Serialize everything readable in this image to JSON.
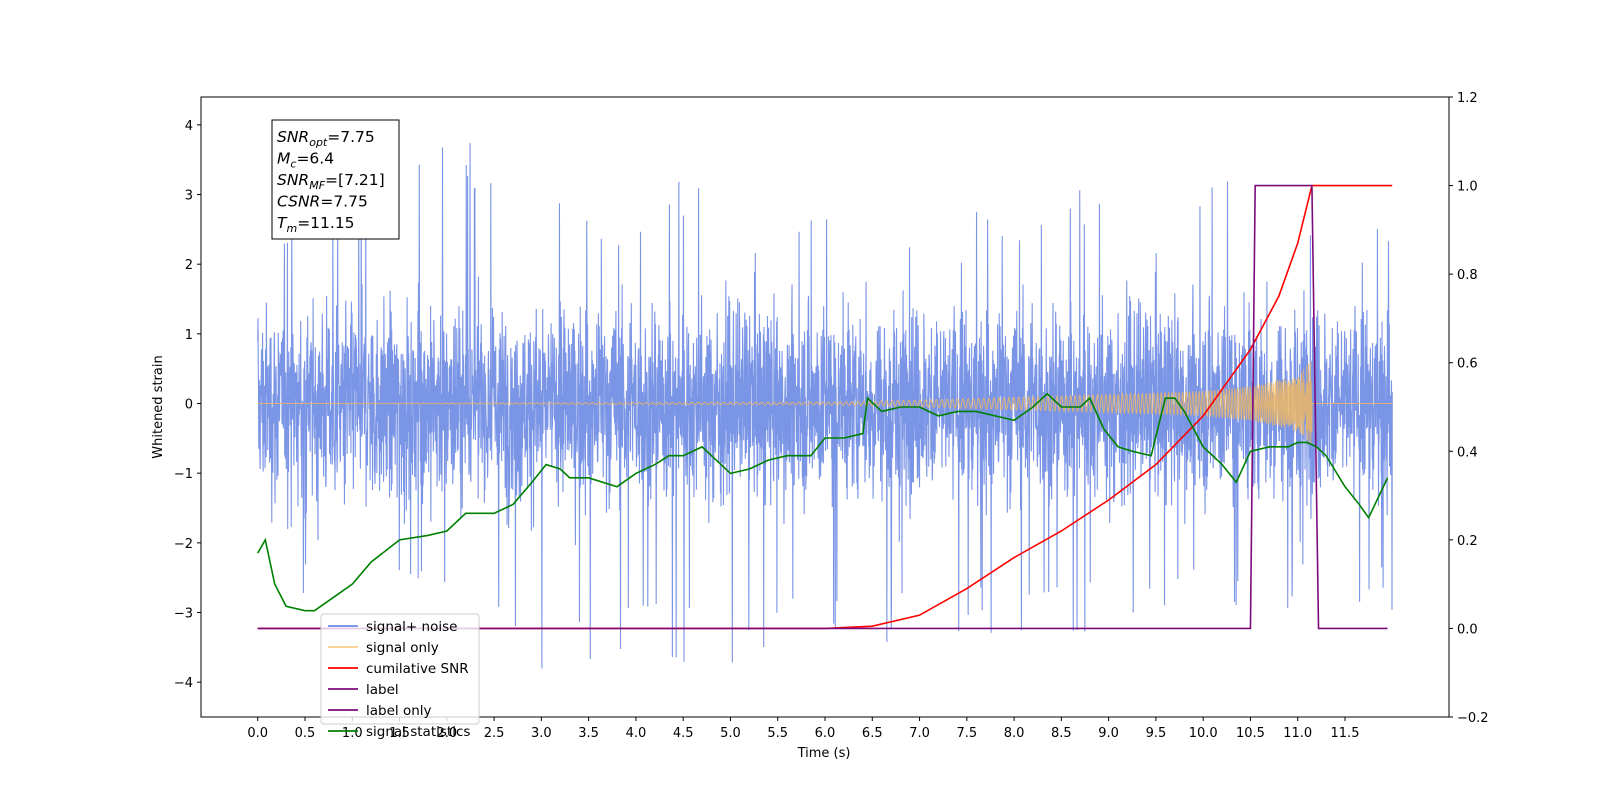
{
  "chart_data": {
    "type": "line",
    "xlabel": "Time (s)",
    "ylabel": "Whitened strain",
    "xlim": [
      -0.6,
      12.6
    ],
    "ylim": [
      -4.5,
      4.4
    ],
    "y2lim": [
      -0.2,
      1.2
    ],
    "x_ticks": [
      0.0,
      0.5,
      1.0,
      1.5,
      2.0,
      2.5,
      3.0,
      3.5,
      4.0,
      4.5,
      5.0,
      5.5,
      6.0,
      6.5,
      7.0,
      7.5,
      8.0,
      8.5,
      9.0,
      9.5,
      10.0,
      10.5,
      11.0,
      11.5
    ],
    "x_tick_labels": [
      "0.0",
      "0.5",
      "1.0",
      "1.5",
      "2.0",
      "2.5",
      "3.0",
      "3.5",
      "4.0",
      "4.5",
      "5.0",
      "5.5",
      "6.0",
      "6.5",
      "7.0",
      "7.5",
      "8.0",
      "8.5",
      "9.0",
      "9.5",
      "10.0",
      "10.5",
      "11.0",
      "11.5"
    ],
    "y_ticks": [
      -4,
      -3,
      -2,
      -1,
      0,
      1,
      2,
      3,
      4
    ],
    "y_tick_labels": [
      "−4",
      "−3",
      "−2",
      "−1",
      "0",
      "1",
      "2",
      "3",
      "4"
    ],
    "y2_ticks": [
      -0.2,
      0.0,
      0.2,
      0.4,
      0.6,
      0.8,
      1.0,
      1.2
    ],
    "y2_tick_labels": [
      "−0.2",
      "0.0",
      "0.2",
      "0.4",
      "0.6",
      "0.8",
      "1.0",
      "1.2"
    ],
    "annotation": {
      "lines": [
        {
          "sym": "SNR",
          "sub": "opt",
          "val": "=7.75"
        },
        {
          "sym": "M",
          "sub": "c",
          "val": "=6.4"
        },
        {
          "sym": "SNR",
          "sub": "MF",
          "val": "=[7.21]"
        },
        {
          "sym": "CSNR",
          "sub": "",
          "val": "=7.75"
        },
        {
          "sym": "T",
          "sub": "m",
          "val": "=11.15"
        }
      ]
    },
    "legend": {
      "placement": "lower-left",
      "entries": [
        {
          "label": "signal+ noise",
          "color": "#6b88e3"
        },
        {
          "label": "signal only",
          "color": "#f5b95c"
        },
        {
          "label": "cumilative SNR",
          "color": "#ff0000"
        },
        {
          "label": "label",
          "color": "#7b0b7b"
        },
        {
          "label": "label only",
          "color": "#7b0b7b"
        },
        {
          "label": "signal statistics",
          "color": "#008000"
        }
      ]
    },
    "series": [
      {
        "name": "signal+ noise",
        "axis": "left",
        "color": "#6b88e3",
        "x_range": [
          0.0,
          12.0
        ],
        "envelope": {
          "x": [
            0,
            1,
            2,
            3,
            4,
            5,
            6,
            7,
            8,
            9,
            10,
            11,
            12
          ],
          "upper": [
            2.5,
            3.0,
            4.0,
            3.0,
            2.9,
            3.7,
            2.9,
            2.9,
            3.0,
            3.2,
            3.6,
            3.2,
            2.6
          ],
          "lower": [
            -2.5,
            -3.0,
            -3.0,
            -4.1,
            -3.6,
            -4.1,
            -3.3,
            -3.6,
            -3.4,
            -3.4,
            -3.0,
            -3.0,
            -3.1
          ]
        }
      },
      {
        "name": "signal only",
        "axis": "left",
        "color": "#f5b95c",
        "x": [
          0.0,
          6.0,
          7.0,
          8.0,
          9.0,
          10.0,
          10.5,
          11.0,
          11.15,
          12.0
        ],
        "amplitude": [
          0.0,
          0.02,
          0.05,
          0.09,
          0.13,
          0.18,
          0.25,
          0.4,
          0.65,
          0.0
        ]
      },
      {
        "name": "cumilative SNR",
        "axis": "right",
        "color": "#ff0000",
        "x": [
          0.0,
          6.0,
          6.5,
          7.0,
          7.5,
          8.0,
          8.5,
          9.0,
          9.5,
          10.0,
          10.5,
          10.8,
          11.0,
          11.15,
          11.2,
          12.0
        ],
        "values": [
          0.0,
          0.0,
          0.005,
          0.03,
          0.09,
          0.16,
          0.22,
          0.29,
          0.37,
          0.48,
          0.63,
          0.75,
          0.87,
          1.0,
          1.0,
          1.0
        ]
      },
      {
        "name": "label",
        "axis": "right",
        "color": "#7b0b7b",
        "x": [
          0.0,
          10.5,
          10.55,
          11.15,
          11.22,
          11.95
        ],
        "values": [
          0.0,
          0.0,
          1.0,
          1.0,
          0.0,
          0.0
        ]
      },
      {
        "name": "signal statistics",
        "axis": "right",
        "color": "#008000",
        "x": [
          0.0,
          0.08,
          0.18,
          0.3,
          0.5,
          0.6,
          0.8,
          1.0,
          1.2,
          1.5,
          1.8,
          2.0,
          2.2,
          2.5,
          2.7,
          2.9,
          3.05,
          3.2,
          3.3,
          3.5,
          3.8,
          4.0,
          4.2,
          4.35,
          4.5,
          4.7,
          4.9,
          5.0,
          5.2,
          5.4,
          5.6,
          5.85,
          6.0,
          6.2,
          6.4,
          6.45,
          6.6,
          6.8,
          7.0,
          7.2,
          7.4,
          7.6,
          7.8,
          8.0,
          8.2,
          8.35,
          8.5,
          8.7,
          8.8,
          8.95,
          9.1,
          9.25,
          9.45,
          9.6,
          9.7,
          9.8,
          10.0,
          10.2,
          10.35,
          10.5,
          10.7,
          10.9,
          11.0,
          11.1,
          11.2,
          11.3,
          11.5,
          11.65,
          11.75,
          11.95
        ],
        "values": [
          0.17,
          0.2,
          0.1,
          0.05,
          0.04,
          0.04,
          0.07,
          0.1,
          0.15,
          0.2,
          0.21,
          0.22,
          0.26,
          0.26,
          0.28,
          0.33,
          0.37,
          0.36,
          0.34,
          0.34,
          0.32,
          0.35,
          0.37,
          0.39,
          0.39,
          0.41,
          0.37,
          0.35,
          0.36,
          0.38,
          0.39,
          0.39,
          0.43,
          0.43,
          0.44,
          0.52,
          0.49,
          0.5,
          0.5,
          0.48,
          0.49,
          0.49,
          0.48,
          0.47,
          0.5,
          0.53,
          0.5,
          0.5,
          0.52,
          0.45,
          0.41,
          0.4,
          0.39,
          0.52,
          0.52,
          0.49,
          0.41,
          0.37,
          0.33,
          0.4,
          0.41,
          0.41,
          0.42,
          0.42,
          0.41,
          0.39,
          0.32,
          0.28,
          0.25,
          0.34
        ]
      }
    ]
  }
}
